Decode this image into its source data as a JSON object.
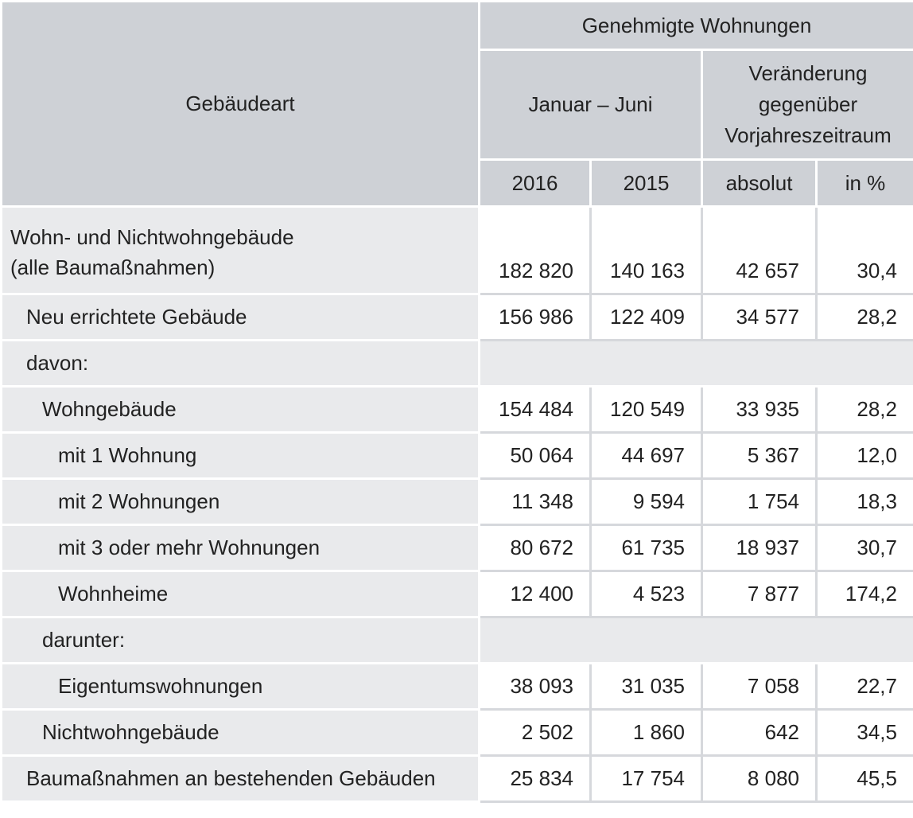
{
  "table": {
    "header": {
      "row_label": "Gebäudeart",
      "group": "Genehmigte Wohnungen",
      "period": "Januar – Juni",
      "change": [
        "Veränderung",
        "gegenüber",
        "Vorjahreszeitraum"
      ],
      "col_2016": "2016",
      "col_2015": "2015",
      "col_abs": "absolut",
      "col_pct": "in %"
    },
    "rows": [
      {
        "label1": "Wohn- und Nichtwohngebäude",
        "label2": "(alle Baumaßnahmen)",
        "v2016": "182 820",
        "v2015": "140 163",
        "abs": "42 657",
        "pct": "30,4"
      },
      {
        "label": "Neu errichtete Gebäude",
        "v2016": "156 986",
        "v2015": "122 409",
        "abs": "34 577",
        "pct": "28,2"
      },
      {
        "label": "davon:"
      },
      {
        "label": "Wohngebäude",
        "v2016": "154 484",
        "v2015": "120 549",
        "abs": "33 935",
        "pct": "28,2"
      },
      {
        "label": "mit 1 Wohnung",
        "v2016": "50 064",
        "v2015": "44 697",
        "abs": "5 367",
        "pct": "12,0"
      },
      {
        "label": "mit 2 Wohnungen",
        "v2016": "11 348",
        "v2015": "9 594",
        "abs": "1 754",
        "pct": "18,3"
      },
      {
        "label": "mit 3 oder mehr Wohnungen",
        "v2016": "80 672",
        "v2015": "61 735",
        "abs": "18 937",
        "pct": "30,7"
      },
      {
        "label": "Wohnheime",
        "v2016": "12 400",
        "v2015": "4 523",
        "abs": "7 877",
        "pct": "174,2"
      },
      {
        "label": "darunter:"
      },
      {
        "label": "Eigentumswohnungen",
        "v2016": "38 093",
        "v2015": "31 035",
        "abs": "7 058",
        "pct": "22,7"
      },
      {
        "label": "Nichtwohngebäude",
        "v2016": "2 502",
        "v2015": "1 860",
        "abs": "642",
        "pct": "34,5"
      },
      {
        "label": "Baumaßnahmen an bestehenden Gebäuden",
        "v2016": "25 834",
        "v2015": "17 754",
        "abs": "8 080",
        "pct": "45,5"
      }
    ]
  }
}
